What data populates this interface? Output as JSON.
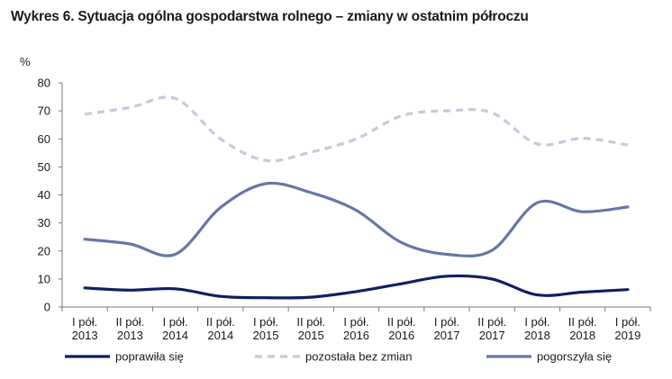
{
  "chart_data": {
    "type": "line",
    "title": "Wykres 6. Sytuacja ogólna gospodarstwa rolnego – zmiany w ostatnim półroczu",
    "ylabel": "%",
    "xlabel": "",
    "ylim": [
      0,
      80
    ],
    "yticks": [
      0,
      10,
      20,
      30,
      40,
      50,
      60,
      70,
      80
    ],
    "grid": false,
    "legend_position": "bottom",
    "categories": [
      [
        "I pół.",
        "2013"
      ],
      [
        "II pół.",
        "2013"
      ],
      [
        "I pół.",
        "2014"
      ],
      [
        "II pół.",
        "2014"
      ],
      [
        "I pół.",
        "2015"
      ],
      [
        "II pół.",
        "2015"
      ],
      [
        "I pół.",
        "2016"
      ],
      [
        "II pół.",
        "2016"
      ],
      [
        "I pół.",
        "2017"
      ],
      [
        "II pół.",
        "2017"
      ],
      [
        "I pół.",
        "2018"
      ],
      [
        "II pół.",
        "2018"
      ],
      [
        "I pół.",
        "2019"
      ]
    ],
    "series": [
      {
        "name": "poprawiła się",
        "color": "#0f2062",
        "dash": "solid",
        "values": [
          6.8,
          6.0,
          6.5,
          3.8,
          3.3,
          3.5,
          5.5,
          8.3,
          11.0,
          10.0,
          4.3,
          5.3,
          6.2
        ]
      },
      {
        "name": "pozostała bez zmian",
        "color": "#c6cbd9",
        "dash": "dashed",
        "values": [
          68.8,
          71.2,
          74.4,
          60.0,
          52.3,
          55.3,
          60.0,
          68.2,
          70.0,
          69.3,
          58.2,
          60.2,
          57.8
        ]
      },
      {
        "name": "pogorszyła się",
        "color": "#6777a6",
        "dash": "solid",
        "values": [
          24.2,
          22.5,
          18.8,
          35.5,
          44.0,
          40.8,
          34.5,
          23.0,
          18.8,
          20.2,
          37.2,
          34.0,
          35.7
        ]
      }
    ]
  }
}
